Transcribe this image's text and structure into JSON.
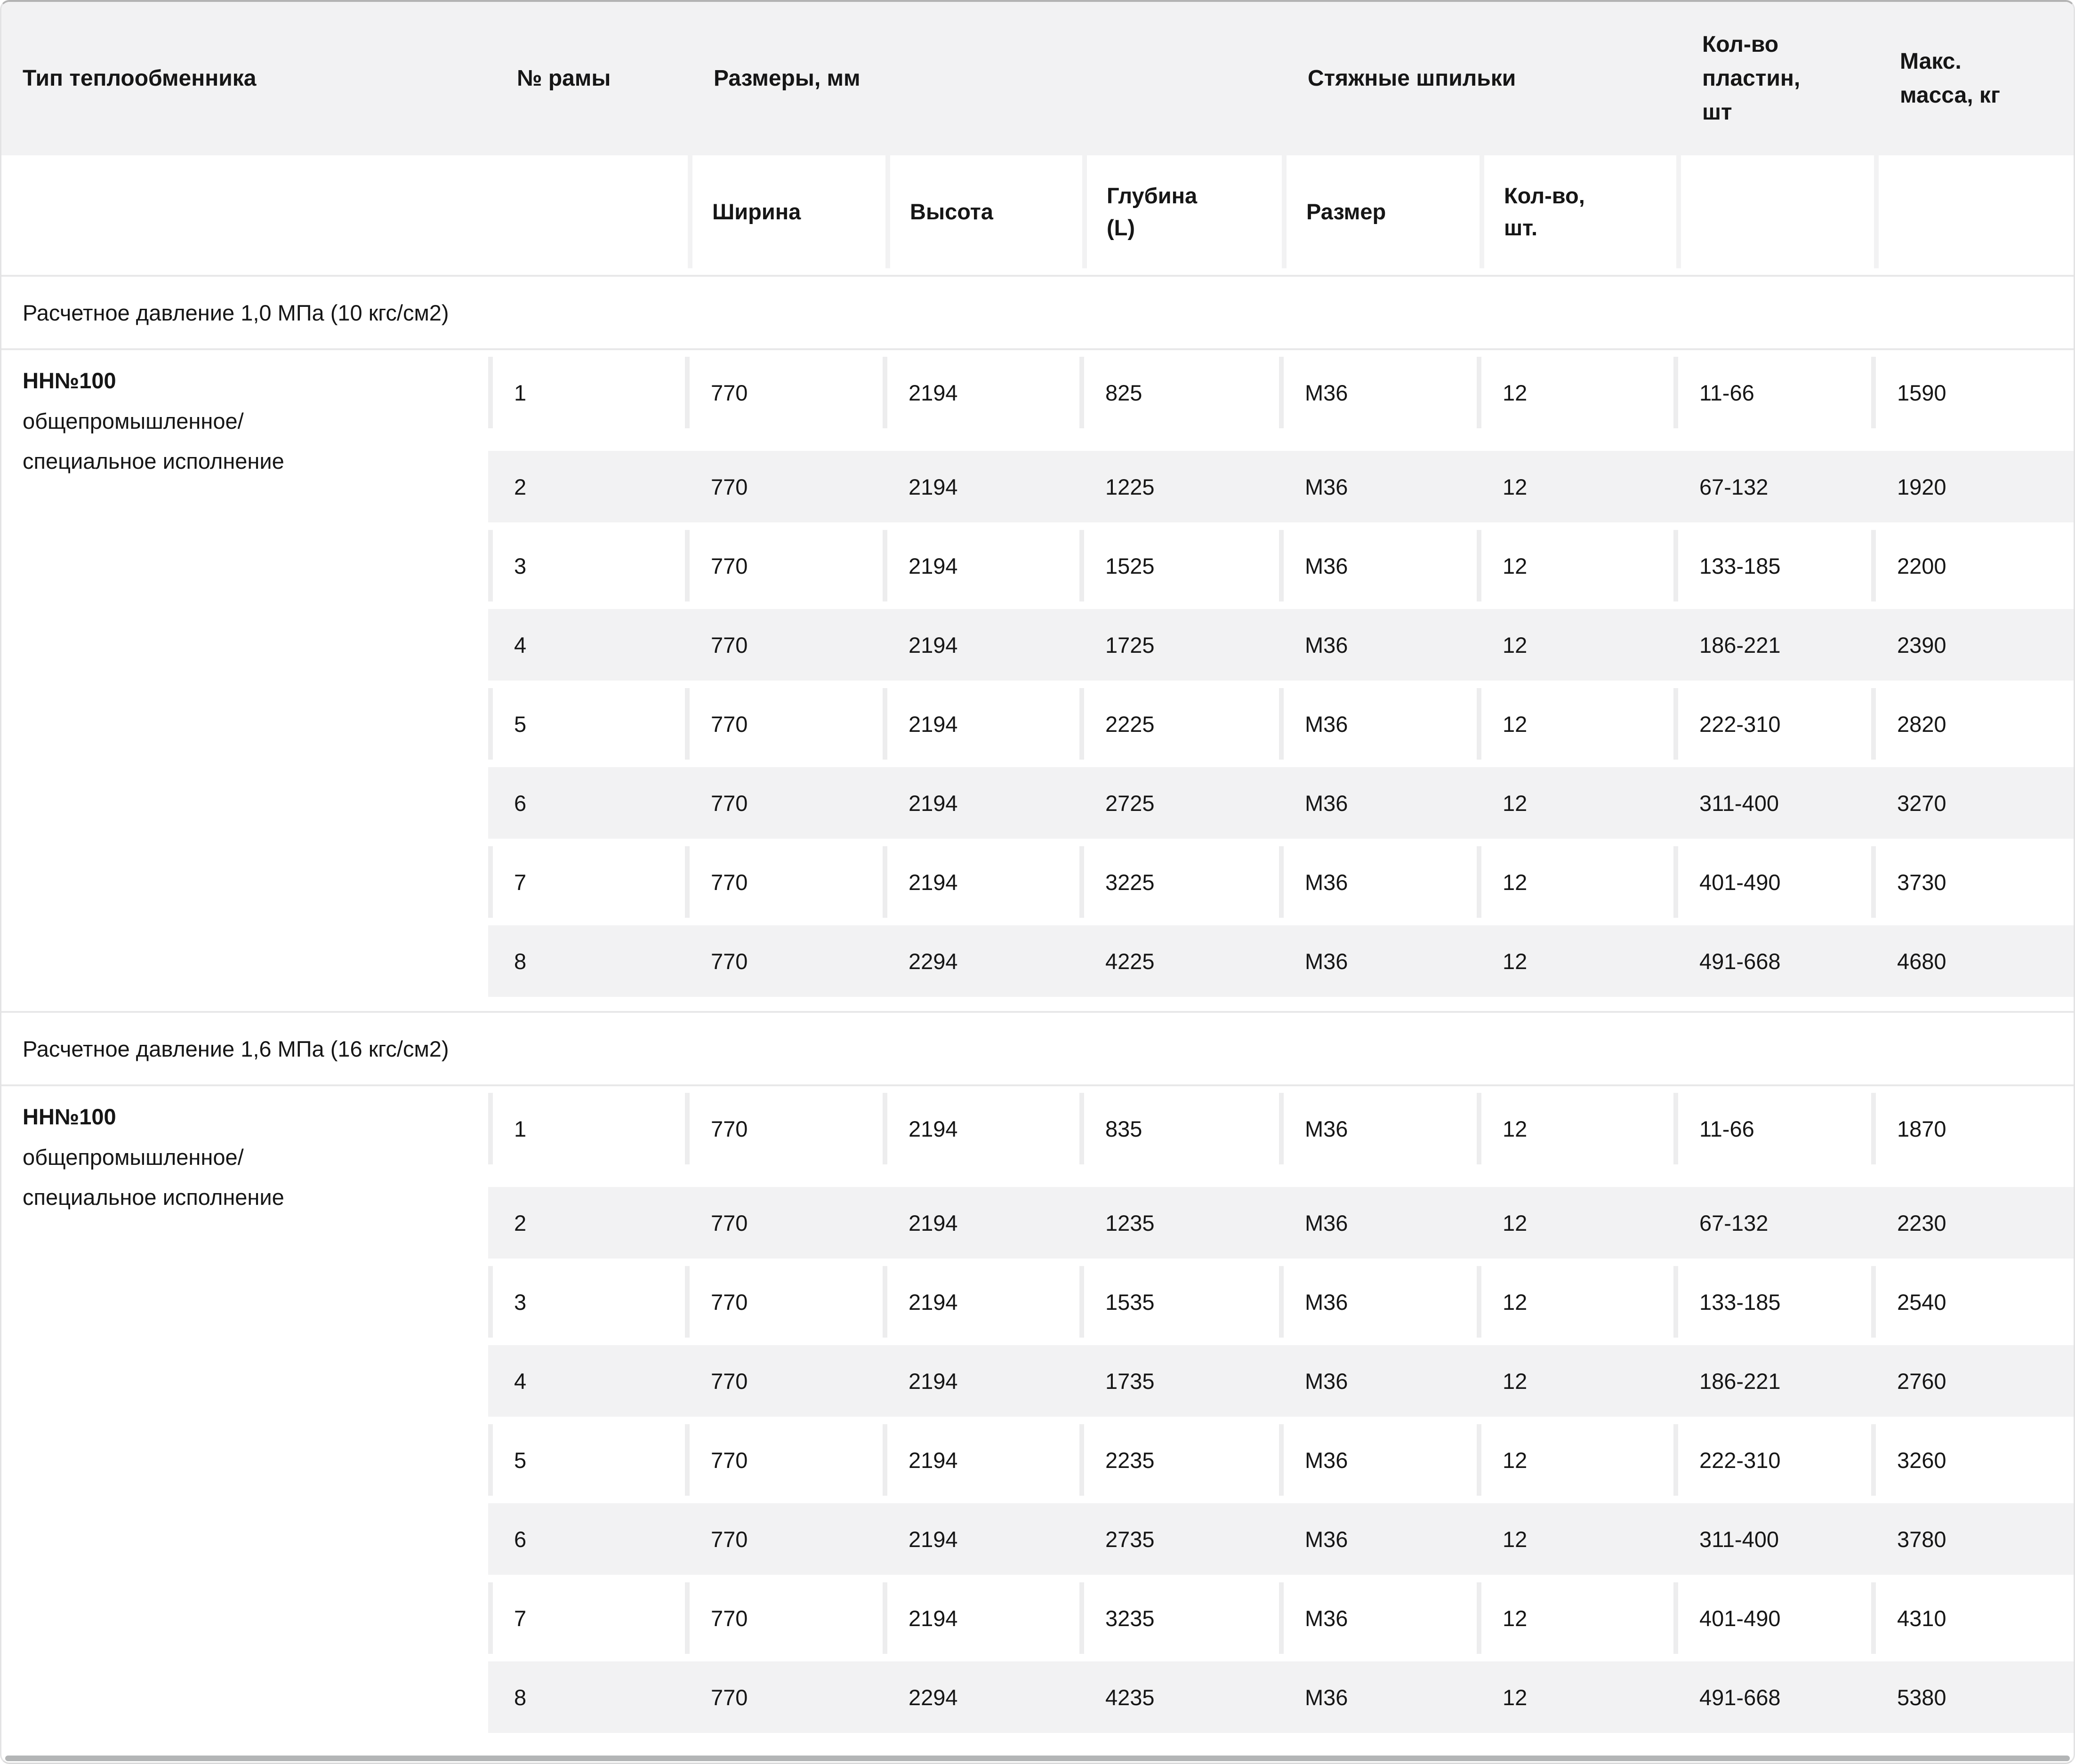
{
  "header": {
    "type": "Тип теплообменника",
    "frame": "№ рамы",
    "sizes_group": "Размеры, мм",
    "studs_group": "Стяжные шпильки",
    "plates": "Кол-во пластин, шт",
    "mass": "Макс. масса, кг",
    "sub_width": "Ширина",
    "sub_height": "Высота",
    "sub_depth": "Глубина (L)",
    "sub_size": "Размер",
    "sub_qty": "Кол-во, шт."
  },
  "sections": [
    {
      "title": "Расчетное давление 1,0 МПа (10 кгс/см2)",
      "group": {
        "name": "НН№100",
        "desc_line1": "общепромышленное/",
        "desc_line2": "специальное исполнение",
        "rows": [
          [
            "1",
            "770",
            "2194",
            "825",
            "М36",
            "12",
            "11-66",
            "1590"
          ],
          [
            "2",
            "770",
            "2194",
            "1225",
            "М36",
            "12",
            "67-132",
            "1920"
          ],
          [
            "3",
            "770",
            "2194",
            "1525",
            "М36",
            "12",
            "133-185",
            "2200"
          ],
          [
            "4",
            "770",
            "2194",
            "1725",
            "М36",
            "12",
            "186-221",
            "2390"
          ],
          [
            "5",
            "770",
            "2194",
            "2225",
            "М36",
            "12",
            "222-310",
            "2820"
          ],
          [
            "6",
            "770",
            "2194",
            "2725",
            "М36",
            "12",
            "311-400",
            "3270"
          ],
          [
            "7",
            "770",
            "2194",
            "3225",
            "М36",
            "12",
            "401-490",
            "3730"
          ],
          [
            "8",
            "770",
            "2294",
            "4225",
            "М36",
            "12",
            "491-668",
            "4680"
          ]
        ]
      }
    },
    {
      "title": "Расчетное давление 1,6 МПа (16 кгс/см2)",
      "group": {
        "name": "НН№100",
        "desc_line1": "общепромышленное/",
        "desc_line2": "специальное исполнение",
        "rows": [
          [
            "1",
            "770",
            "2194",
            "835",
            "М36",
            "12",
            "11-66",
            "1870"
          ],
          [
            "2",
            "770",
            "2194",
            "1235",
            "М36",
            "12",
            "67-132",
            "2230"
          ],
          [
            "3",
            "770",
            "2194",
            "1535",
            "М36",
            "12",
            "133-185",
            "2540"
          ],
          [
            "4",
            "770",
            "2194",
            "1735",
            "М36",
            "12",
            "186-221",
            "2760"
          ],
          [
            "5",
            "770",
            "2194",
            "2235",
            "М36",
            "12",
            "222-310",
            "3260"
          ],
          [
            "6",
            "770",
            "2194",
            "2735",
            "М36",
            "12",
            "311-400",
            "3780"
          ],
          [
            "7",
            "770",
            "2194",
            "3235",
            "М36",
            "12",
            "401-490",
            "4310"
          ],
          [
            "8",
            "770",
            "2294",
            "4235",
            "М36",
            "12",
            "491-668",
            "5380"
          ]
        ]
      }
    }
  ],
  "colors": {
    "header_band": "#f2f2f3",
    "column_gap": "#ededee",
    "separator": "#e8e8e9",
    "top_border": "#b3b3b3",
    "scrollbar": "#b3b5b6",
    "text": "#161616"
  }
}
